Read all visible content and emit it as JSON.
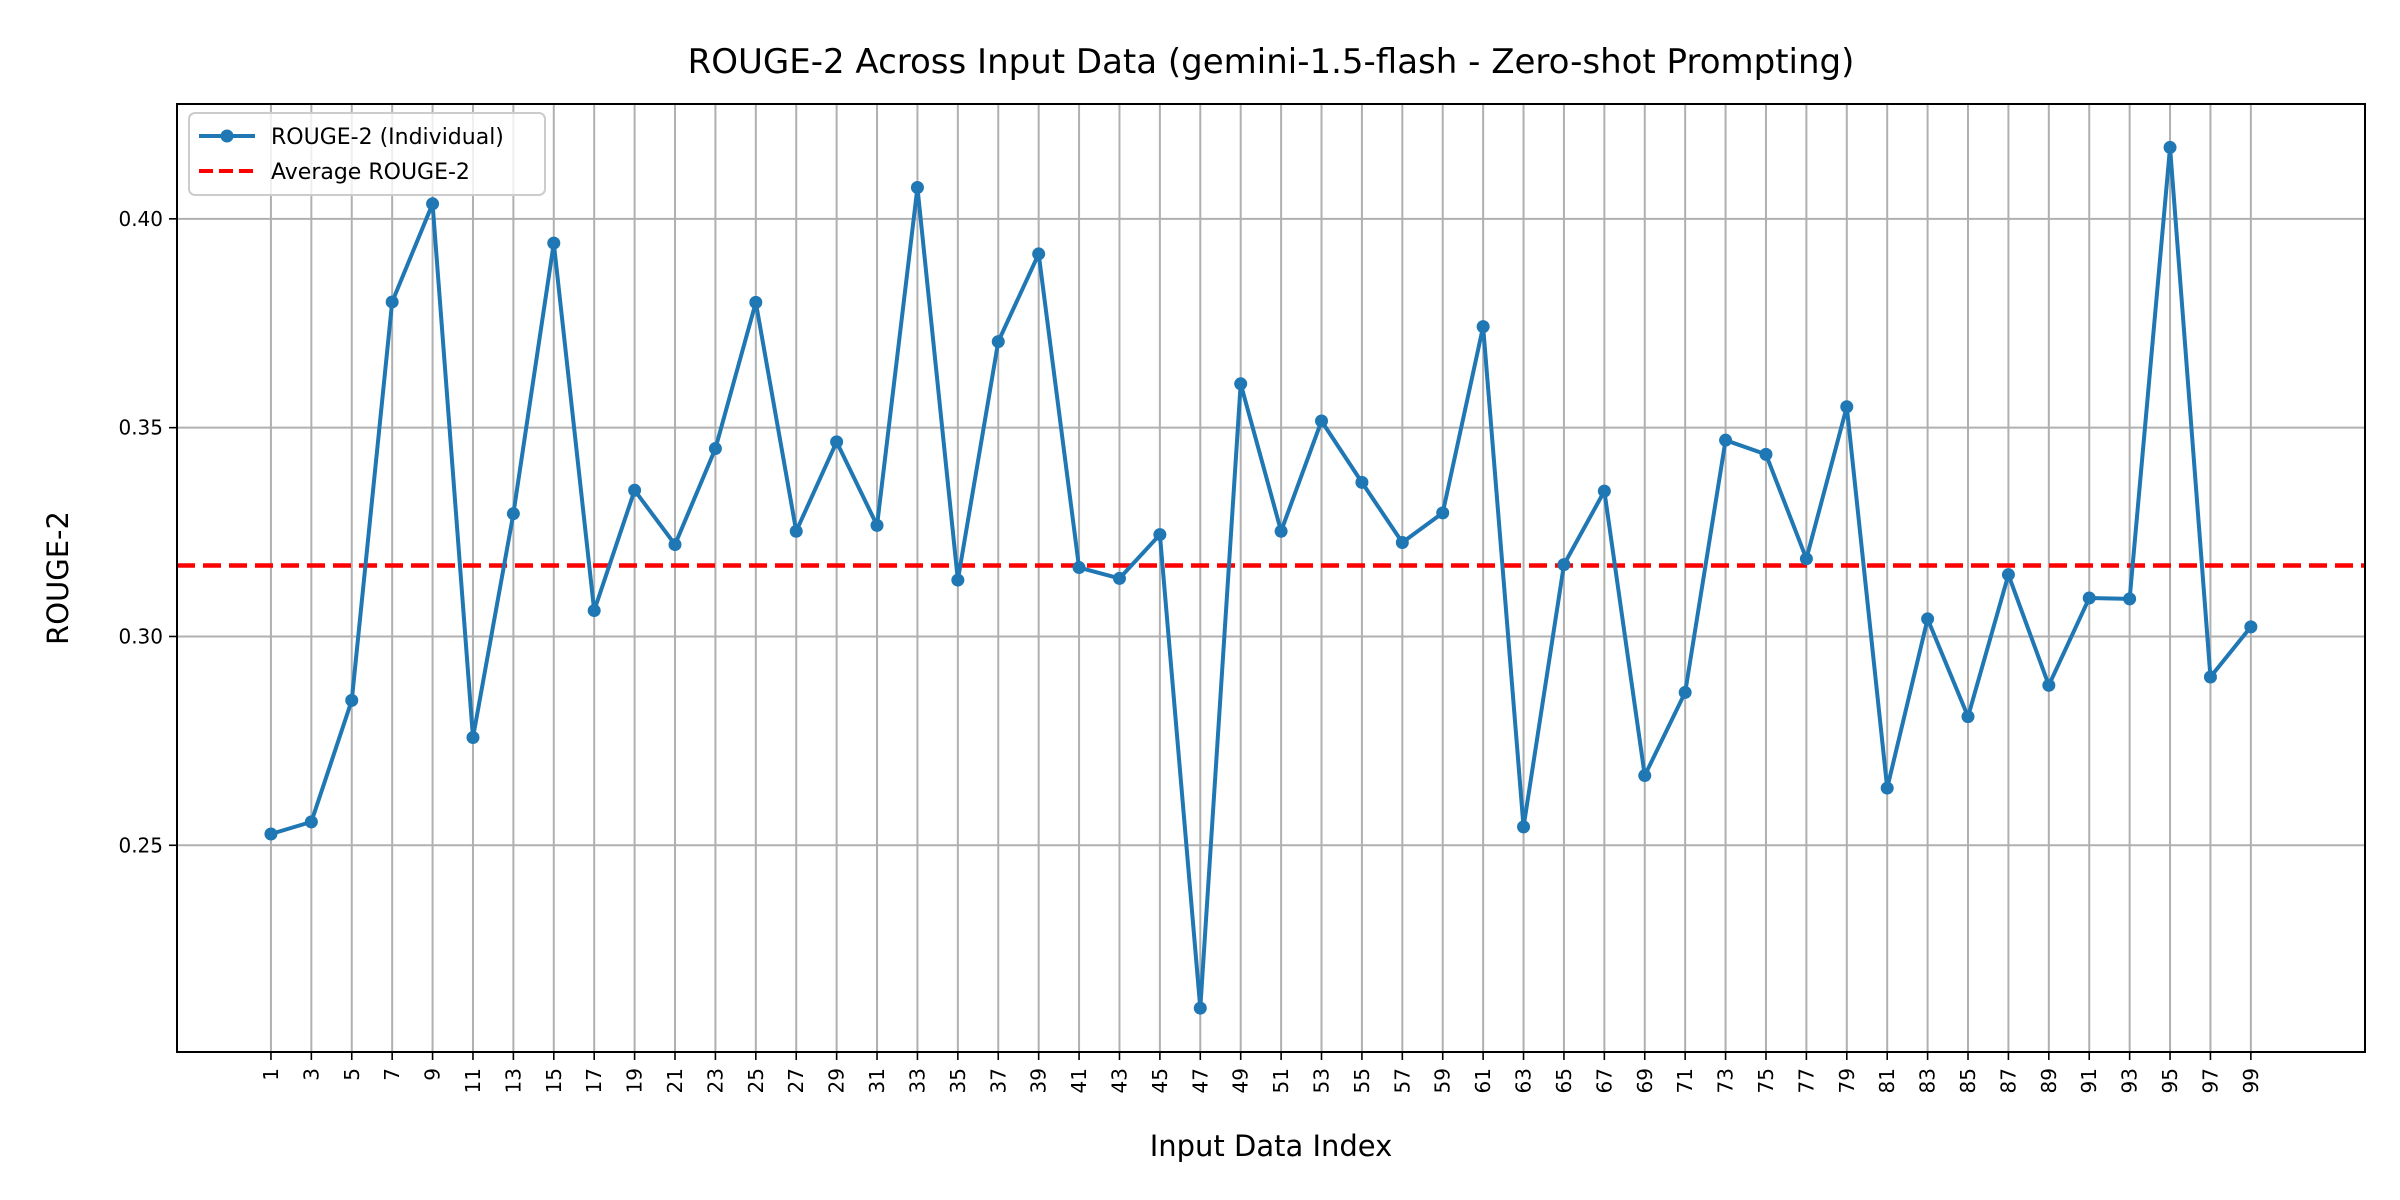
{
  "chart_data": {
    "type": "line",
    "title": "ROUGE-2 Across Input Data (gemini-1.5-flash - Zero-shot Prompting)",
    "xlabel": "Input Data Index",
    "ylabel": "ROUGE-2",
    "x": [
      1,
      3,
      5,
      7,
      9,
      11,
      13,
      15,
      17,
      19,
      21,
      23,
      25,
      27,
      29,
      31,
      33,
      35,
      37,
      39,
      41,
      43,
      45,
      47,
      49,
      51,
      53,
      55,
      57,
      59,
      61,
      63,
      65,
      67,
      69,
      71,
      73,
      75,
      77,
      79,
      81,
      83,
      85,
      87,
      89,
      91,
      93,
      95,
      97,
      99
    ],
    "xticks": [
      "1",
      "3",
      "5",
      "7",
      "9",
      "11",
      "13",
      "15",
      "17",
      "19",
      "21",
      "23",
      "25",
      "27",
      "29",
      "31",
      "33",
      "35",
      "37",
      "39",
      "41",
      "43",
      "45",
      "47",
      "49",
      "51",
      "53",
      "55",
      "57",
      "59",
      "61",
      "63",
      "65",
      "67",
      "69",
      "71",
      "73",
      "75",
      "77",
      "79",
      "81",
      "83",
      "85",
      "87",
      "89",
      "91",
      "93",
      "95",
      "97",
      "99"
    ],
    "xlim": [
      -3.65,
      104.65
    ],
    "ylim": [
      0.2005,
      0.4275
    ],
    "yticks": [
      0.25,
      0.3,
      0.35,
      0.4
    ],
    "ytick_labels": [
      "0.25",
      "0.30",
      "0.35",
      "0.40"
    ],
    "grid": true,
    "legend_placement": "top-left",
    "series": [
      {
        "name": "ROUGE-2 (Individual)",
        "color": "#1f77b4",
        "style": "solid-with-markers",
        "values": [
          0.2527,
          0.2556,
          0.2847,
          0.3801,
          0.4036,
          0.2758,
          0.3294,
          0.3942,
          0.3062,
          0.335,
          0.322,
          0.345,
          0.38,
          0.3252,
          0.3466,
          0.3266,
          0.4075,
          0.3135,
          0.3706,
          0.3916,
          0.3165,
          0.3139,
          0.3244,
          0.211,
          0.3605,
          0.3252,
          0.3516,
          0.3369,
          0.3225,
          0.3296,
          0.3742,
          0.2544,
          0.3172,
          0.3348,
          0.2667,
          0.2866,
          0.347,
          0.3436,
          0.3186,
          0.355,
          0.2637,
          0.3042,
          0.2808,
          0.3148,
          0.2883,
          0.3092,
          0.309,
          0.4171,
          0.2903,
          0.3023
        ]
      },
      {
        "name": "Average ROUGE-2",
        "color": "#ff0000",
        "style": "dashed",
        "value": 0.317
      }
    ]
  }
}
